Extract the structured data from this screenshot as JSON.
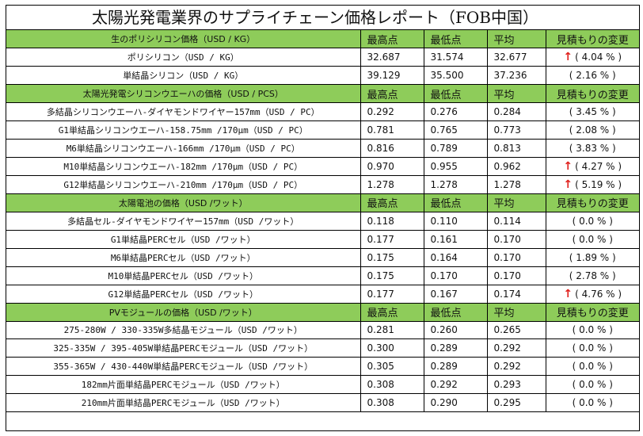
{
  "title": "太陽光発電業界のサプライチェーン価格レポート（FOB中国）",
  "sections": [
    {
      "header": "生のポリシリコン価格（USD / KG）",
      "columns": [
        "最高点",
        "最低点",
        "平均",
        "見積もりの変更"
      ],
      "rows": [
        {
          "name": "ポリシリコン（USD / KG）",
          "high": "32.687",
          "low": "31.574",
          "avg": "32.677",
          "change": "( 4.04 % )",
          "up": true
        },
        {
          "name": "単結晶シリコン（USD / KG）",
          "high": "39.129",
          "low": "35.500",
          "avg": "37.236",
          "change": "( 2.16 % )",
          "up": false
        }
      ]
    },
    {
      "header": "太陽光発電シリコンウエーハの価格（USD / PCS）",
      "columns": [
        "最高点",
        "最低点",
        "平均",
        "見積もりの変更"
      ],
      "rows": [
        {
          "name": "多結晶シリコンウエーハ-ダイヤモンドワイヤー157mm（USD / PC）",
          "high": "0.292",
          "low": "0.276",
          "avg": "0.284",
          "change": "( 3.45 % )",
          "up": false
        },
        {
          "name": "G1単結晶シリコンウエーハ-158.75mm /170μm（USD / PC）",
          "high": "0.781",
          "low": "0.765",
          "avg": "0.773",
          "change": "( 2.08 % )",
          "up": false
        },
        {
          "name": "M6単結晶シリコンウエーハ-166mm /170μm（USD / PC）",
          "high": "0.816",
          "low": "0.789",
          "avg": "0.813",
          "change": "( 3.83 % )",
          "up": false
        },
        {
          "name": "M10単結晶シリコンウエーハ-182mm /170μm（USD / PC）",
          "high": "0.970",
          "low": "0.955",
          "avg": "0.962",
          "change": "( 4.27 % )",
          "up": true
        },
        {
          "name": "G12単結晶シリコンウエーハ-210mm /170μm（USD / PC）",
          "high": "1.278",
          "low": "1.278",
          "avg": "1.278",
          "change": "( 5.19 % )",
          "up": true
        }
      ]
    },
    {
      "header": "太陽電池の価格（USD /ワット）",
      "columns": [
        "最高点",
        "最低点",
        "平均",
        "見積もりの変更"
      ],
      "rows": [
        {
          "name": "多結晶セル-ダイヤモンドワイヤー157mm（USD /ワット）",
          "high": "0.118",
          "low": "0.110",
          "avg": "0.114",
          "change": "( 0.0 % )",
          "up": false
        },
        {
          "name": "G1単結晶PERCセル（USD /ワット）",
          "high": "0.177",
          "low": "0.161",
          "avg": "0.170",
          "change": "( 0.0 % )",
          "up": false
        },
        {
          "name": "M6単結晶PERCセル（USD /ワット）",
          "high": "0.175",
          "low": "0.164",
          "avg": "0.170",
          "change": "( 1.89 % )",
          "up": false
        },
        {
          "name": "M10単結晶PERCセル（USD /ワット）",
          "high": "0.175",
          "low": "0.170",
          "avg": "0.170",
          "change": "( 2.78 % )",
          "up": false
        },
        {
          "name": "G12単結晶PERCセル（USD /ワット）",
          "high": "0.177",
          "low": "0.167",
          "avg": "0.174",
          "change": "( 4.76 % )",
          "up": true
        }
      ]
    },
    {
      "header": "PVモジュールの価格（USD /ワット）",
      "columns": [
        "最高点",
        "最低点",
        "平均",
        "見積もりの変更"
      ],
      "rows": [
        {
          "name": "275-280W / 330-335W多結晶モジュール（USD /ワット）",
          "high": "0.281",
          "low": "0.260",
          "avg": "0.265",
          "change": "( 0.0 % )",
          "up": false
        },
        {
          "name": "325-335W / 395-405W単結晶PERCモジュール（USD /ワット）",
          "high": "0.300",
          "low": "0.289",
          "avg": "0.292",
          "change": "( 0.0 % )",
          "up": false
        },
        {
          "name": "355-365W / 430-440W単結晶PERCモジュール（USD /ワット）",
          "high": "0.305",
          "low": "0.289",
          "avg": "0.292",
          "change": "( 0.0 % )",
          "up": false
        },
        {
          "name": "182mm片面単結晶PERCモジュール（USD /ワット）",
          "high": "0.308",
          "low": "0.292",
          "avg": "0.293",
          "change": "( 0.0 % )",
          "up": false
        },
        {
          "name": "210mm片面単結晶PERCモジュール（USD /ワット）",
          "high": "0.308",
          "low": "0.290",
          "avg": "0.295",
          "change": "( 0.0 % )",
          "up": false
        }
      ]
    }
  ],
  "icons": {
    "increase": "up-arrow-icon"
  },
  "colors": {
    "section_header_bg": "#8ecc5a",
    "increase_arrow": "#e0201c",
    "border": "#000000"
  }
}
